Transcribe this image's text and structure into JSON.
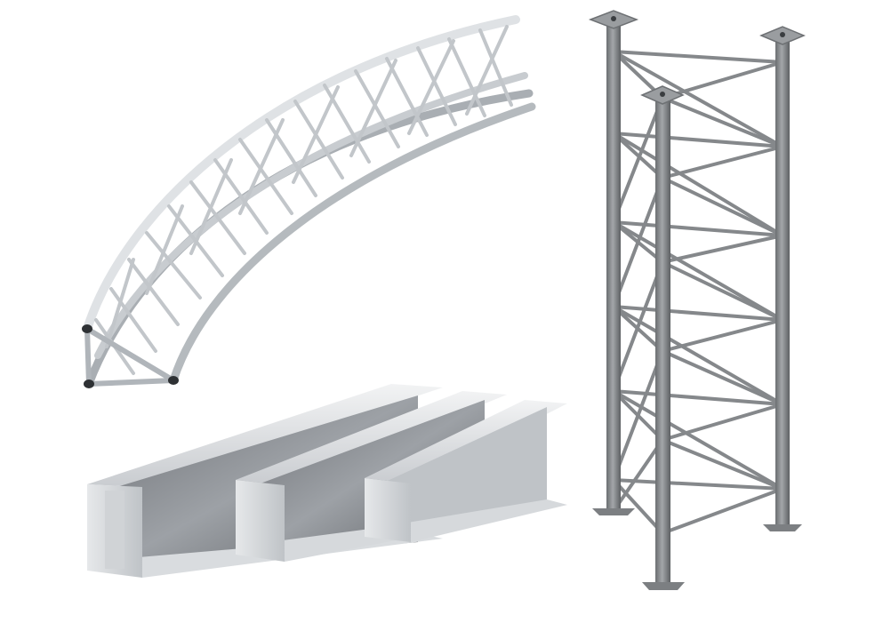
{
  "scene": {
    "background": "#ffffff",
    "objects": [
      {
        "name": "curved-aluminium-truss",
        "color": "#d4d8dc"
      },
      {
        "name": "steel-i-beams",
        "count": 3,
        "color": "#b8bcc0"
      },
      {
        "name": "lattice-steel-tower",
        "color": "#8a8d90"
      }
    ]
  }
}
